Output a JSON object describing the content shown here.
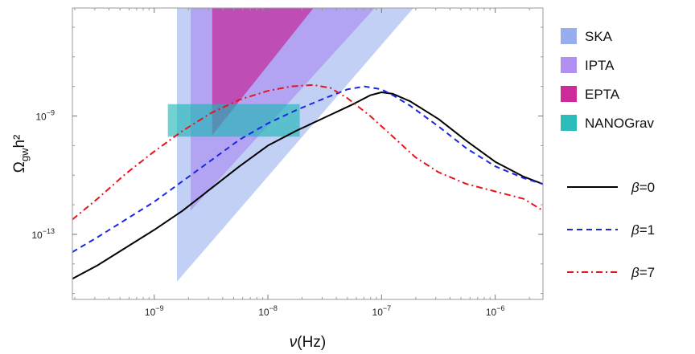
{
  "chart_data": {
    "type": "line",
    "title": "",
    "xlabel": {
      "symbol": "ν",
      "unit": "(Hz)"
    },
    "ylabel": {
      "base": "Ω",
      "sub": "gw",
      "rest": "h²"
    },
    "x_scale": "log10",
    "y_scale": "log10",
    "xlim_log10": [
      -9.72,
      -5.58
    ],
    "ylim_log10": [
      -15.2,
      -5.35
    ],
    "x_ticks": [
      {
        "log10": -9,
        "label": "10",
        "exp": "−9"
      },
      {
        "log10": -8,
        "label": "10",
        "exp": "−8"
      },
      {
        "log10": -7,
        "label": "10",
        "exp": "−7"
      },
      {
        "log10": -6,
        "label": "10",
        "exp": "−6"
      }
    ],
    "y_ticks": [
      {
        "log10": -9,
        "label": "10",
        "exp": "−9"
      },
      {
        "log10": -13,
        "label": "10",
        "exp": "−13"
      }
    ],
    "regions": [
      {
        "name": "SKA",
        "color": "#6d8fe8",
        "opacity": 0.42,
        "polygon_log10": [
          [
            -8.8,
            -5.35
          ],
          [
            -6.72,
            -5.35
          ],
          [
            -8.8,
            -14.6
          ]
        ]
      },
      {
        "name": "IPTA",
        "color": "#a57df0",
        "opacity": 0.55,
        "polygon_log10": [
          [
            -8.68,
            -5.35
          ],
          [
            -7.06,
            -5.35
          ],
          [
            -8.68,
            -12.2
          ]
        ]
      },
      {
        "name": "EPTA",
        "color": "#c8148e",
        "opacity": 0.6,
        "polygon_log10": [
          [
            -8.49,
            -5.35
          ],
          [
            -7.6,
            -5.35
          ],
          [
            -8.49,
            -9.65
          ]
        ]
      },
      {
        "name": "NANOGrav",
        "color": "#1ab7b4",
        "opacity": 0.62,
        "polygon_log10": [
          [
            -8.88,
            -8.6
          ],
          [
            -7.72,
            -8.6
          ],
          [
            -7.72,
            -9.7
          ],
          [
            -8.88,
            -9.7
          ]
        ]
      }
    ],
    "series": [
      {
        "name": "β=0",
        "color": "#000000",
        "dash": "solid",
        "x_log10": [
          -9.72,
          -9.5,
          -9.25,
          -9.0,
          -8.75,
          -8.5,
          -8.25,
          -8.0,
          -7.75,
          -7.5,
          -7.25,
          -7.1,
          -7.0,
          -6.9,
          -6.75,
          -6.5,
          -6.25,
          -6.0,
          -5.75,
          -5.58
        ],
        "y_log10": [
          -14.5,
          -14.05,
          -13.45,
          -12.85,
          -12.2,
          -11.45,
          -10.7,
          -10.0,
          -9.5,
          -9.05,
          -8.6,
          -8.3,
          -8.2,
          -8.25,
          -8.5,
          -9.1,
          -9.85,
          -10.55,
          -11.05,
          -11.3
        ]
      },
      {
        "name": "β=1",
        "color": "#1a26e0",
        "dash": "dashed",
        "x_log10": [
          -9.72,
          -9.5,
          -9.25,
          -9.0,
          -8.75,
          -8.5,
          -8.25,
          -8.0,
          -7.75,
          -7.5,
          -7.3,
          -7.15,
          -7.0,
          -6.9,
          -6.75,
          -6.5,
          -6.25,
          -6.0,
          -5.75,
          -5.58
        ],
        "y_log10": [
          -13.6,
          -13.1,
          -12.5,
          -11.9,
          -11.2,
          -10.5,
          -9.8,
          -9.25,
          -8.8,
          -8.4,
          -8.1,
          -8.0,
          -8.1,
          -8.3,
          -8.65,
          -9.35,
          -10.1,
          -10.7,
          -11.1,
          -11.3
        ]
      },
      {
        "name": "β=7",
        "color": "#e8141c",
        "dash": "dashdot",
        "x_log10": [
          -9.72,
          -9.5,
          -9.25,
          -9.0,
          -8.75,
          -8.5,
          -8.25,
          -8.0,
          -7.8,
          -7.6,
          -7.45,
          -7.3,
          -7.1,
          -6.9,
          -6.7,
          -6.5,
          -6.25,
          -6.0,
          -5.75,
          -5.58
        ],
        "y_log10": [
          -12.5,
          -11.8,
          -10.95,
          -10.2,
          -9.5,
          -8.9,
          -8.45,
          -8.15,
          -8.0,
          -7.95,
          -8.05,
          -8.4,
          -9.0,
          -9.7,
          -10.4,
          -10.9,
          -11.3,
          -11.55,
          -11.8,
          -12.2
        ]
      }
    ],
    "legend_regions": [
      "SKA",
      "IPTA",
      "EPTA",
      "NANOGrav"
    ],
    "legend_lines": [
      "β=0",
      "β=1",
      "β=7"
    ],
    "legend_position": "right"
  }
}
